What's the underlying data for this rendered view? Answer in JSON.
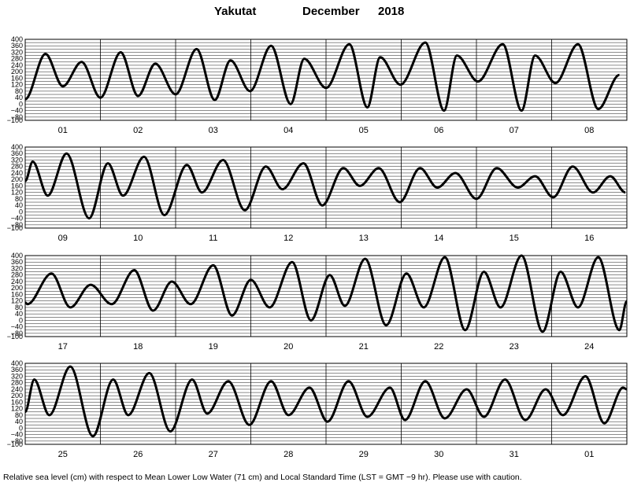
{
  "header": {
    "station": "Yakutat",
    "month": "December",
    "year": "2018"
  },
  "footer": "Relative sea level (cm) with respect to Mean Lower Low Water (71 cm) and Local Standard Time (LST = GMT −9 hr). Please use with caution.",
  "chart_data": {
    "type": "line",
    "unit": "cm",
    "ylim": [
      -100,
      400
    ],
    "y_tick_labels": [
      "400",
      "360",
      "320",
      "280",
      "240",
      "200",
      "160",
      "120",
      "80",
      "40",
      "0",
      "−40",
      "−80",
      "−100"
    ],
    "line_color": "#000000",
    "grid": true,
    "panels": [
      {
        "days": [
          "01",
          "02",
          "03",
          "04",
          "05",
          "06",
          "07",
          "08"
        ],
        "tide_points": [
          [
            0,
            30
          ],
          [
            0.27,
            310
          ],
          [
            0.5,
            110
          ],
          [
            0.75,
            260
          ],
          [
            1,
            40
          ],
          [
            1.27,
            320
          ],
          [
            1.5,
            50
          ],
          [
            1.73,
            250
          ],
          [
            2,
            60
          ],
          [
            2.28,
            340
          ],
          [
            2.52,
            25
          ],
          [
            2.73,
            270
          ],
          [
            2.99,
            80
          ],
          [
            3.27,
            360
          ],
          [
            3.53,
            0
          ],
          [
            3.71,
            280
          ],
          [
            4,
            100
          ],
          [
            4.31,
            370
          ],
          [
            4.55,
            -20
          ],
          [
            4.72,
            290
          ],
          [
            4.99,
            120
          ],
          [
            5.32,
            380
          ],
          [
            5.57,
            -40
          ],
          [
            5.74,
            300
          ],
          [
            6.02,
            140
          ],
          [
            6.35,
            370
          ],
          [
            6.6,
            -40
          ],
          [
            6.78,
            300
          ],
          [
            7.05,
            130
          ],
          [
            7.35,
            370
          ],
          [
            7.62,
            -30
          ],
          [
            7.9,
            180
          ]
        ]
      },
      {
        "days": [
          "09",
          "10",
          "11",
          "12",
          "13",
          "14",
          "15",
          "16"
        ],
        "tide_points": [
          [
            0,
            190
          ],
          [
            0.1,
            310
          ],
          [
            0.3,
            100
          ],
          [
            0.55,
            360
          ],
          [
            0.85,
            -40
          ],
          [
            1.1,
            300
          ],
          [
            1.3,
            100
          ],
          [
            1.58,
            340
          ],
          [
            1.85,
            -20
          ],
          [
            2.15,
            290
          ],
          [
            2.35,
            120
          ],
          [
            2.63,
            320
          ],
          [
            2.92,
            10
          ],
          [
            3.2,
            280
          ],
          [
            3.42,
            140
          ],
          [
            3.7,
            300
          ],
          [
            3.95,
            40
          ],
          [
            4.23,
            270
          ],
          [
            4.45,
            160
          ],
          [
            4.7,
            270
          ],
          [
            4.98,
            60
          ],
          [
            5.25,
            270
          ],
          [
            5.48,
            150
          ],
          [
            5.72,
            240
          ],
          [
            6,
            80
          ],
          [
            6.27,
            270
          ],
          [
            6.55,
            150
          ],
          [
            6.78,
            220
          ],
          [
            7.02,
            90
          ],
          [
            7.28,
            280
          ],
          [
            7.55,
            120
          ],
          [
            7.78,
            220
          ],
          [
            7.98,
            120
          ]
        ]
      },
      {
        "days": [
          "17",
          "18",
          "19",
          "20",
          "21",
          "22",
          "23",
          "24"
        ],
        "tide_points": [
          [
            0,
            110
          ],
          [
            0.03,
            100
          ],
          [
            0.35,
            290
          ],
          [
            0.6,
            80
          ],
          [
            0.87,
            220
          ],
          [
            1.15,
            100
          ],
          [
            1.45,
            310
          ],
          [
            1.7,
            60
          ],
          [
            1.95,
            240
          ],
          [
            2.2,
            100
          ],
          [
            2.5,
            340
          ],
          [
            2.75,
            30
          ],
          [
            3,
            250
          ],
          [
            3.25,
            80
          ],
          [
            3.55,
            360
          ],
          [
            3.8,
            0
          ],
          [
            4.05,
            280
          ],
          [
            4.25,
            90
          ],
          [
            4.52,
            380
          ],
          [
            4.8,
            -30
          ],
          [
            5.07,
            290
          ],
          [
            5.3,
            80
          ],
          [
            5.58,
            390
          ],
          [
            5.85,
            -60
          ],
          [
            6.1,
            300
          ],
          [
            6.32,
            80
          ],
          [
            6.6,
            400
          ],
          [
            6.88,
            -70
          ],
          [
            7.12,
            300
          ],
          [
            7.35,
            80
          ],
          [
            7.62,
            390
          ],
          [
            7.9,
            -60
          ],
          [
            8,
            120
          ]
        ]
      },
      {
        "days": [
          "25",
          "26",
          "27",
          "28",
          "29",
          "30",
          "31",
          "01"
        ],
        "tide_points": [
          [
            0,
            100
          ],
          [
            0.12,
            300
          ],
          [
            0.32,
            80
          ],
          [
            0.6,
            380
          ],
          [
            0.9,
            -50
          ],
          [
            1.17,
            300
          ],
          [
            1.37,
            80
          ],
          [
            1.65,
            340
          ],
          [
            1.93,
            -20
          ],
          [
            2.22,
            300
          ],
          [
            2.42,
            90
          ],
          [
            2.7,
            290
          ],
          [
            2.98,
            20
          ],
          [
            3.27,
            290
          ],
          [
            3.5,
            80
          ],
          [
            3.78,
            250
          ],
          [
            4.02,
            40
          ],
          [
            4.3,
            290
          ],
          [
            4.55,
            70
          ],
          [
            4.85,
            250
          ],
          [
            5.05,
            50
          ],
          [
            5.32,
            290
          ],
          [
            5.58,
            60
          ],
          [
            5.87,
            240
          ],
          [
            6.1,
            70
          ],
          [
            6.38,
            300
          ],
          [
            6.65,
            50
          ],
          [
            6.92,
            240
          ],
          [
            7.15,
            80
          ],
          [
            7.45,
            320
          ],
          [
            7.7,
            30
          ],
          [
            7.95,
            250
          ],
          [
            8,
            240
          ]
        ]
      }
    ]
  }
}
